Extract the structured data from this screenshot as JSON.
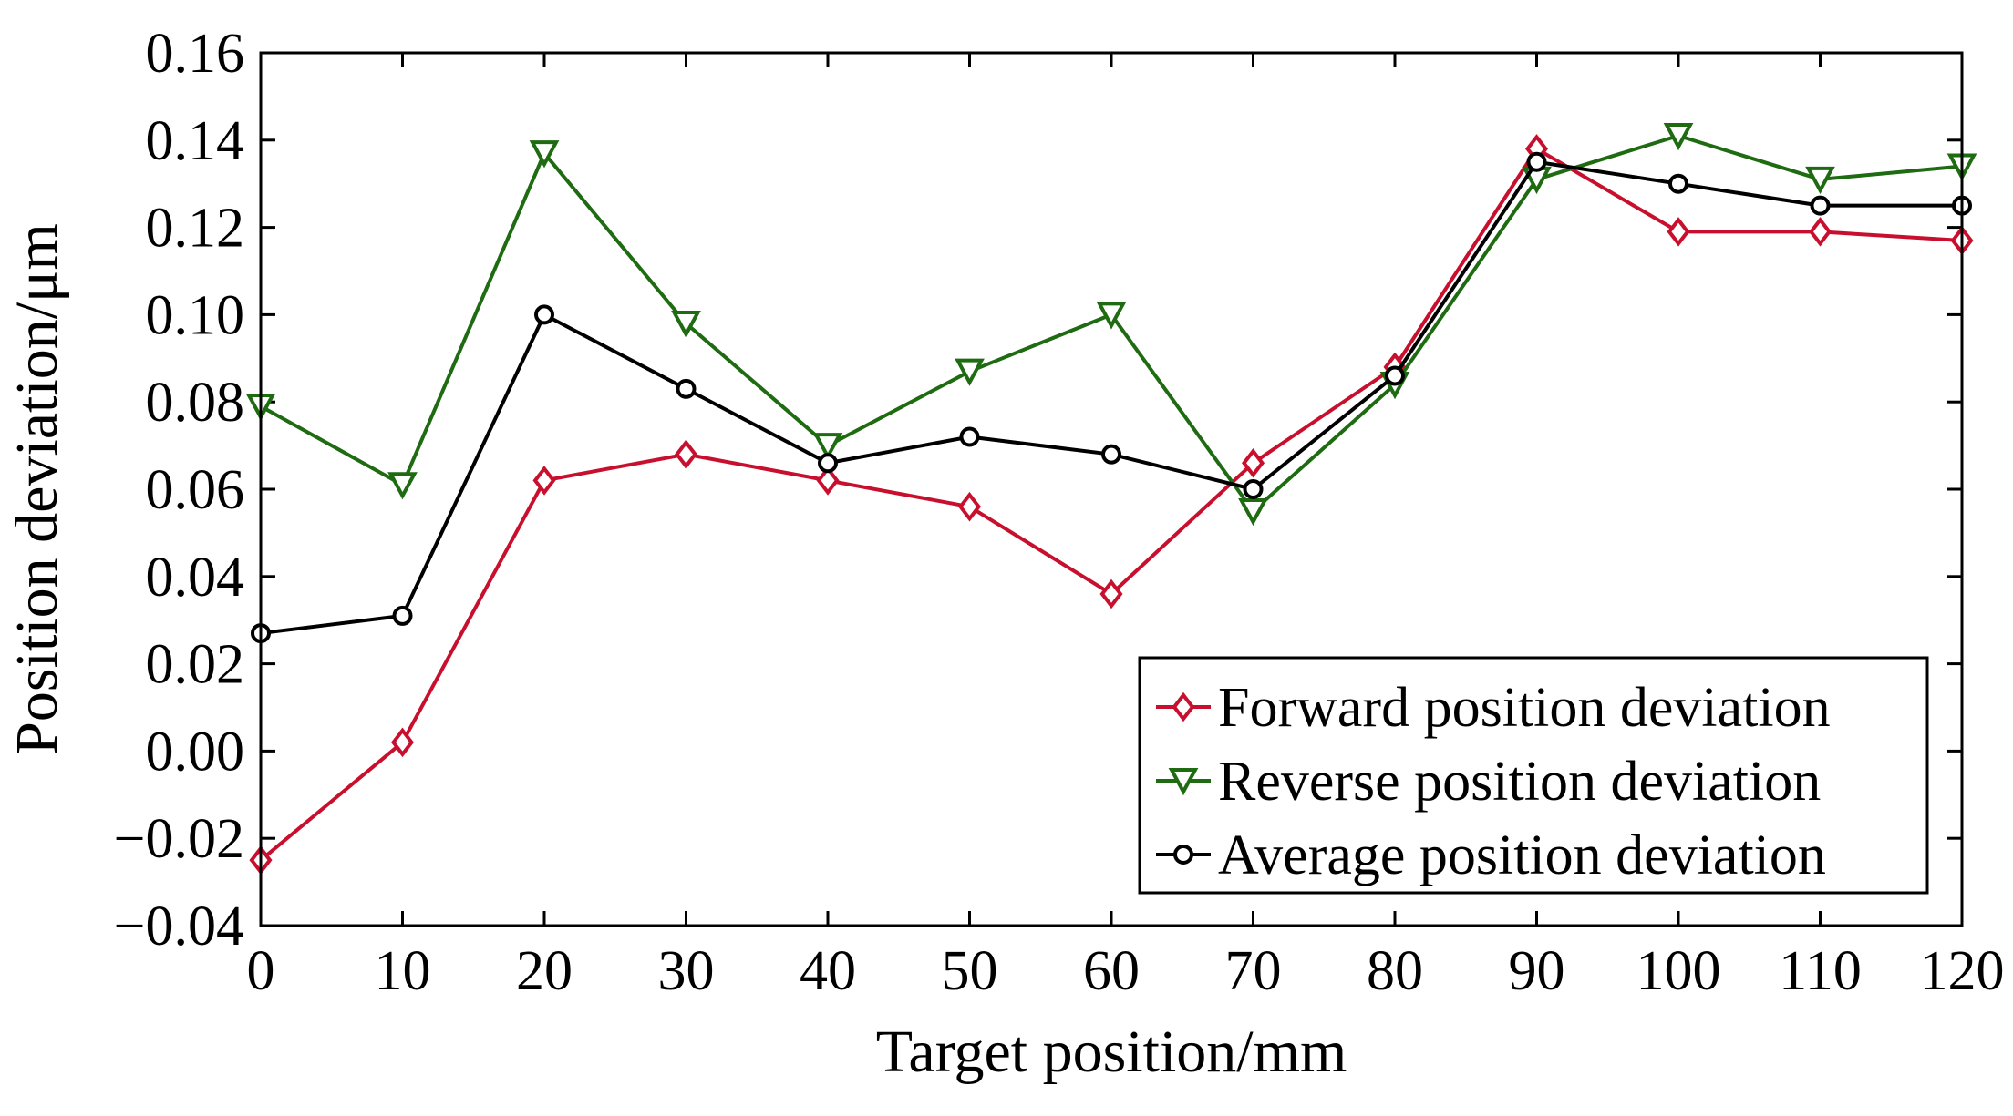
{
  "chart_data": {
    "type": "line",
    "title": "",
    "xlabel": "Target position/mm",
    "ylabel": "Position deviation/μm",
    "xlim": [
      0,
      120
    ],
    "ylim": [
      -0.04,
      0.16
    ],
    "x": [
      0,
      10,
      20,
      30,
      40,
      50,
      60,
      70,
      80,
      90,
      100,
      110,
      120
    ],
    "xticks": [
      "0",
      "10",
      "20",
      "30",
      "40",
      "50",
      "60",
      "70",
      "80",
      "90",
      "100",
      "110",
      "120"
    ],
    "yticks": [
      "−0.04",
      "−0.02",
      "0.00",
      "0.02",
      "0.04",
      "0.06",
      "0.08",
      "0.10",
      "0.12",
      "0.14",
      "0.16"
    ],
    "ytick_values": [
      -0.04,
      -0.02,
      0.0,
      0.02,
      0.04,
      0.06,
      0.08,
      0.1,
      0.12,
      0.14,
      0.16
    ],
    "grid": false,
    "legend_position": "bottom-right",
    "series": [
      {
        "name": "Forward position deviation",
        "color": "#c8102e",
        "marker": "diamond",
        "values": [
          -0.025,
          0.002,
          0.062,
          0.068,
          0.062,
          0.056,
          0.036,
          0.066,
          0.088,
          0.138,
          0.119,
          0.119,
          0.117
        ]
      },
      {
        "name": "Reverse position deviation",
        "color": "#1e6b12",
        "marker": "triangle-down",
        "values": [
          0.079,
          0.061,
          0.137,
          0.098,
          0.07,
          0.087,
          0.1,
          0.055,
          0.084,
          0.131,
          0.141,
          0.131,
          0.134
        ]
      },
      {
        "name": "Average position deviation",
        "color": "#000000",
        "marker": "circle",
        "values": [
          0.027,
          0.031,
          0.1,
          0.083,
          0.066,
          0.072,
          0.068,
          0.06,
          0.086,
          0.135,
          0.13,
          0.125,
          0.125
        ]
      }
    ]
  }
}
